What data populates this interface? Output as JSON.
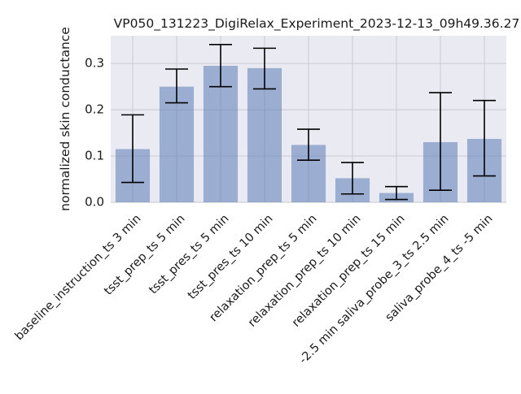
{
  "colors": {
    "plot_background": "#eaeaf2",
    "bar_fill": "#4c72b0",
    "grid": "#cfd0d6",
    "error_bar": "#000000"
  },
  "chart_data": {
    "type": "bar",
    "title": "VP050_131223_DigiRelax_Experiment_2023-12-13_09h49.36.27",
    "xlabel": "",
    "ylabel": "normalized skin conductance",
    "ylim": [
      0,
      0.36
    ],
    "yticks": [
      0.0,
      0.1,
      0.2,
      0.3
    ],
    "ytick_labels": [
      "0.0",
      "0.1",
      "0.2",
      "0.3"
    ],
    "grid": true,
    "categories": [
      "baseline_instruction_ts 3 min",
      "tsst_prep_ts 5 min",
      "tsst_pres_ts 5 min",
      "tsst_pres_ts 10 min",
      "relaxation_prep_ts 5 min",
      "relaxation_prep_ts 10 min",
      "relaxation_prep_ts 15 min",
      "-2.5 min saliva_probe_3_ts 2.5 min",
      "saliva_probe_4_ts -5 min"
    ],
    "values": [
      0.115,
      0.25,
      0.295,
      0.29,
      0.124,
      0.052,
      0.02,
      0.13,
      0.137
    ],
    "error_low": [
      0.043,
      0.215,
      0.25,
      0.245,
      0.091,
      0.018,
      0.006,
      0.026,
      0.057
    ],
    "error_high": [
      0.189,
      0.288,
      0.341,
      0.333,
      0.158,
      0.086,
      0.034,
      0.237,
      0.22
    ]
  }
}
